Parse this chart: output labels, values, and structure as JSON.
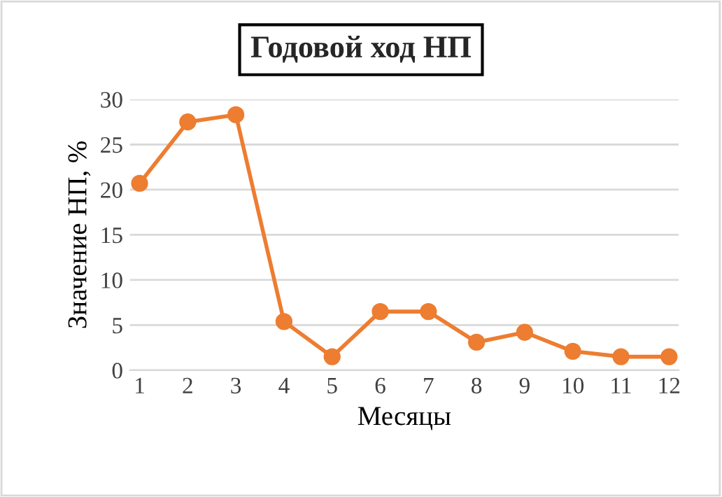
{
  "chart_data": {
    "type": "line",
    "title": "Годовой ход НП",
    "xlabel": "Месяцы",
    "ylabel": "Значение НП, %",
    "categories": [
      "1",
      "2",
      "3",
      "4",
      "5",
      "6",
      "7",
      "8",
      "9",
      "10",
      "11",
      "12"
    ],
    "series": [
      {
        "color": "#ed7d31",
        "values": [
          20.7,
          27.5,
          28.3,
          5.4,
          1.5,
          6.5,
          6.5,
          3.1,
          4.2,
          2.1,
          1.5,
          1.5
        ]
      }
    ],
    "ylim": [
      0,
      30
    ],
    "yticks": [
      0,
      5,
      10,
      15,
      20,
      25,
      30
    ],
    "grid": "y",
    "marker": "circle",
    "line_style": "solid"
  }
}
